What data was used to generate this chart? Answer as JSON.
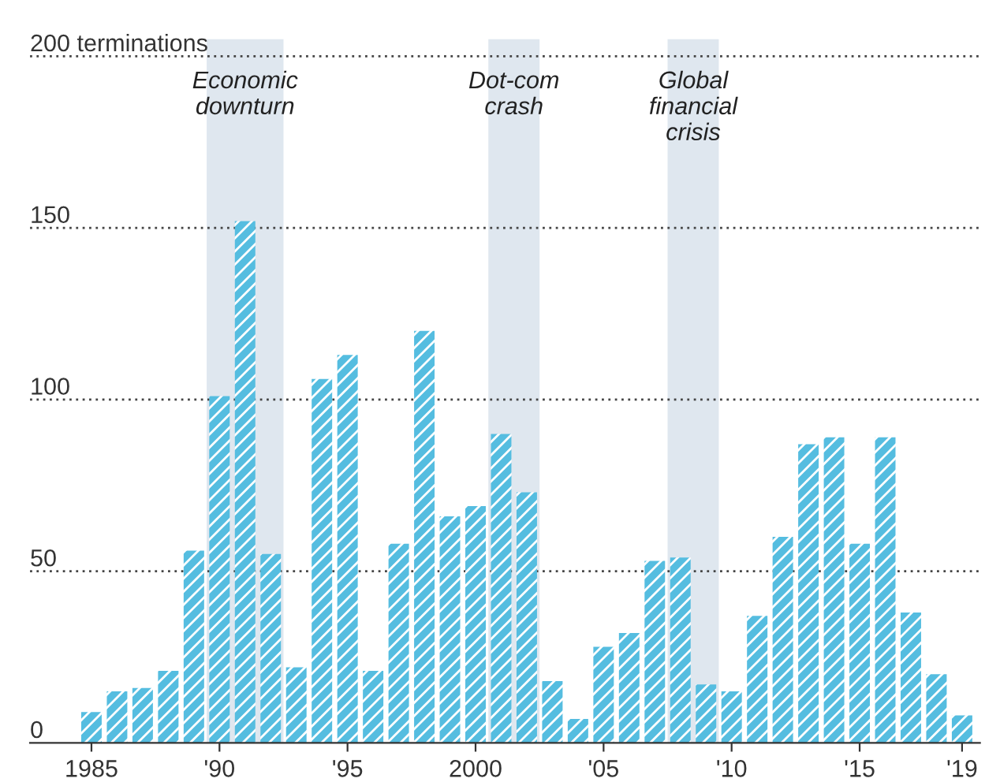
{
  "chart_data": {
    "type": "bar",
    "color": "#55bde0",
    "x": [
      1985,
      1986,
      1987,
      1988,
      1989,
      1990,
      1991,
      1992,
      1993,
      1994,
      1995,
      1996,
      1997,
      1998,
      1999,
      2000,
      2001,
      2002,
      2003,
      2004,
      2005,
      2006,
      2007,
      2008,
      2009,
      2010,
      2011,
      2012,
      2013,
      2014,
      2015,
      2016,
      2017,
      2018,
      2019
    ],
    "values": [
      9,
      15,
      16,
      21,
      56,
      101,
      152,
      55,
      22,
      106,
      113,
      21,
      58,
      120,
      66,
      69,
      90,
      73,
      18,
      7,
      28,
      32,
      53,
      54,
      17,
      15,
      37,
      60,
      87,
      89,
      58,
      89,
      38,
      20,
      8
    ],
    "xlim": [
      1982.6,
      2019.7
    ],
    "xticks": [
      {
        "value": 1985,
        "label": "1985"
      },
      {
        "value": 1990,
        "label": "'90"
      },
      {
        "value": 1995,
        "label": "'95"
      },
      {
        "value": 2000,
        "label": "2000"
      },
      {
        "value": 2005,
        "label": "'05"
      },
      {
        "value": 2010,
        "label": "'10"
      },
      {
        "value": 2015,
        "label": "'15"
      },
      {
        "value": 2019,
        "label": "'19"
      }
    ],
    "ylim": [
      0,
      205
    ],
    "yticks": [
      0,
      50,
      100,
      150,
      {
        "value": 200,
        "label": "200 terminations"
      }
    ],
    "grid": "y",
    "bands": [
      {
        "axis": "x",
        "from": 1989.5,
        "to": 1992.5,
        "label": "Economic\ndownturn",
        "color": "#dfe7ef"
      },
      {
        "axis": "x",
        "from": 2000.5,
        "to": 2002.5,
        "label": "Dot-com\ncrash",
        "color": "#dfe7ef"
      },
      {
        "axis": "x",
        "from": 2007.5,
        "to": 2009.5,
        "label": "Global\nfinancial\ncrisis",
        "color": "#dfe7ef"
      }
    ]
  }
}
